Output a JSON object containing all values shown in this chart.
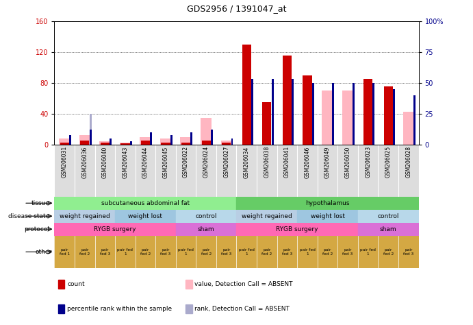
{
  "title": "GDS2956 / 1391047_at",
  "samples": [
    "GSM206031",
    "GSM206036",
    "GSM206040",
    "GSM206043",
    "GSM206044",
    "GSM206045",
    "GSM206022",
    "GSM206024",
    "GSM206027",
    "GSM206034",
    "GSM206038",
    "GSM206041",
    "GSM206046",
    "GSM206049",
    "GSM206050",
    "GSM206023",
    "GSM206025",
    "GSM206028"
  ],
  "count": [
    3,
    5,
    3,
    2,
    5,
    3,
    3,
    5,
    3,
    130,
    55,
    115,
    90,
    null,
    null,
    85,
    75,
    null
  ],
  "percentile_rank": [
    8,
    12,
    5,
    3,
    10,
    8,
    10,
    12,
    5,
    53,
    53,
    53,
    50,
    50,
    50,
    50,
    45,
    40
  ],
  "value_absent": [
    8,
    12,
    4,
    3,
    10,
    8,
    10,
    35,
    5,
    null,
    null,
    null,
    null,
    70,
    70,
    null,
    null,
    43
  ],
  "rank_absent": [
    8,
    25,
    5,
    3,
    8,
    5,
    8,
    12,
    5,
    null,
    null,
    null,
    null,
    45,
    45,
    null,
    null,
    30
  ],
  "tissue_groups": [
    {
      "label": "subcutaneous abdominal fat",
      "start": 0,
      "end": 9,
      "color": "#90EE90"
    },
    {
      "label": "hypothalamus",
      "start": 9,
      "end": 18,
      "color": "#66CC66"
    }
  ],
  "disease_groups": [
    {
      "label": "weight regained",
      "start": 0,
      "end": 3,
      "color": "#B8CEE4"
    },
    {
      "label": "weight lost",
      "start": 3,
      "end": 6,
      "color": "#9EC6E0"
    },
    {
      "label": "control",
      "start": 6,
      "end": 9,
      "color": "#B8D8EA"
    },
    {
      "label": "weight regained",
      "start": 9,
      "end": 12,
      "color": "#B8CEE4"
    },
    {
      "label": "weight lost",
      "start": 12,
      "end": 15,
      "color": "#9EC6E0"
    },
    {
      "label": "control",
      "start": 15,
      "end": 18,
      "color": "#B8D8EA"
    }
  ],
  "protocol_groups": [
    {
      "label": "RYGB surgery",
      "start": 0,
      "end": 6,
      "color": "#FF69B4"
    },
    {
      "label": "sham",
      "start": 6,
      "end": 9,
      "color": "#DA70D6"
    },
    {
      "label": "RYGB surgery",
      "start": 9,
      "end": 15,
      "color": "#FF69B4"
    },
    {
      "label": "sham",
      "start": 15,
      "end": 18,
      "color": "#DA70D6"
    }
  ],
  "other_labels": [
    "pair\nfed 1",
    "pair\nfed 2",
    "pair\nfed 3",
    "pair fed\n1",
    "pair\nfed 2",
    "pair\nfed 3",
    "pair fed\n1",
    "pair\nfed 2",
    "pair\nfed 3",
    "pair fed\n1",
    "pair\nfed 2",
    "pair\nfed 3",
    "pair fed\n1",
    "pair\nfed 2",
    "pair\nfed 3",
    "pair fed\n1",
    "pair\nfed 2",
    "pair\nfed 3"
  ],
  "other_color": "#D4A843",
  "count_color": "#CC0000",
  "percentile_color": "#00008B",
  "value_absent_color": "#FFB6C1",
  "rank_absent_color": "#AAAACC",
  "ylim_left": [
    0,
    160
  ],
  "ylim_right": [
    0,
    100
  ],
  "yticks_left": [
    0,
    40,
    80,
    120,
    160
  ],
  "yticks_right": [
    0,
    25,
    50,
    75,
    100
  ],
  "yticklabels_right": [
    "0",
    "25",
    "50",
    "75",
    "100%"
  ]
}
